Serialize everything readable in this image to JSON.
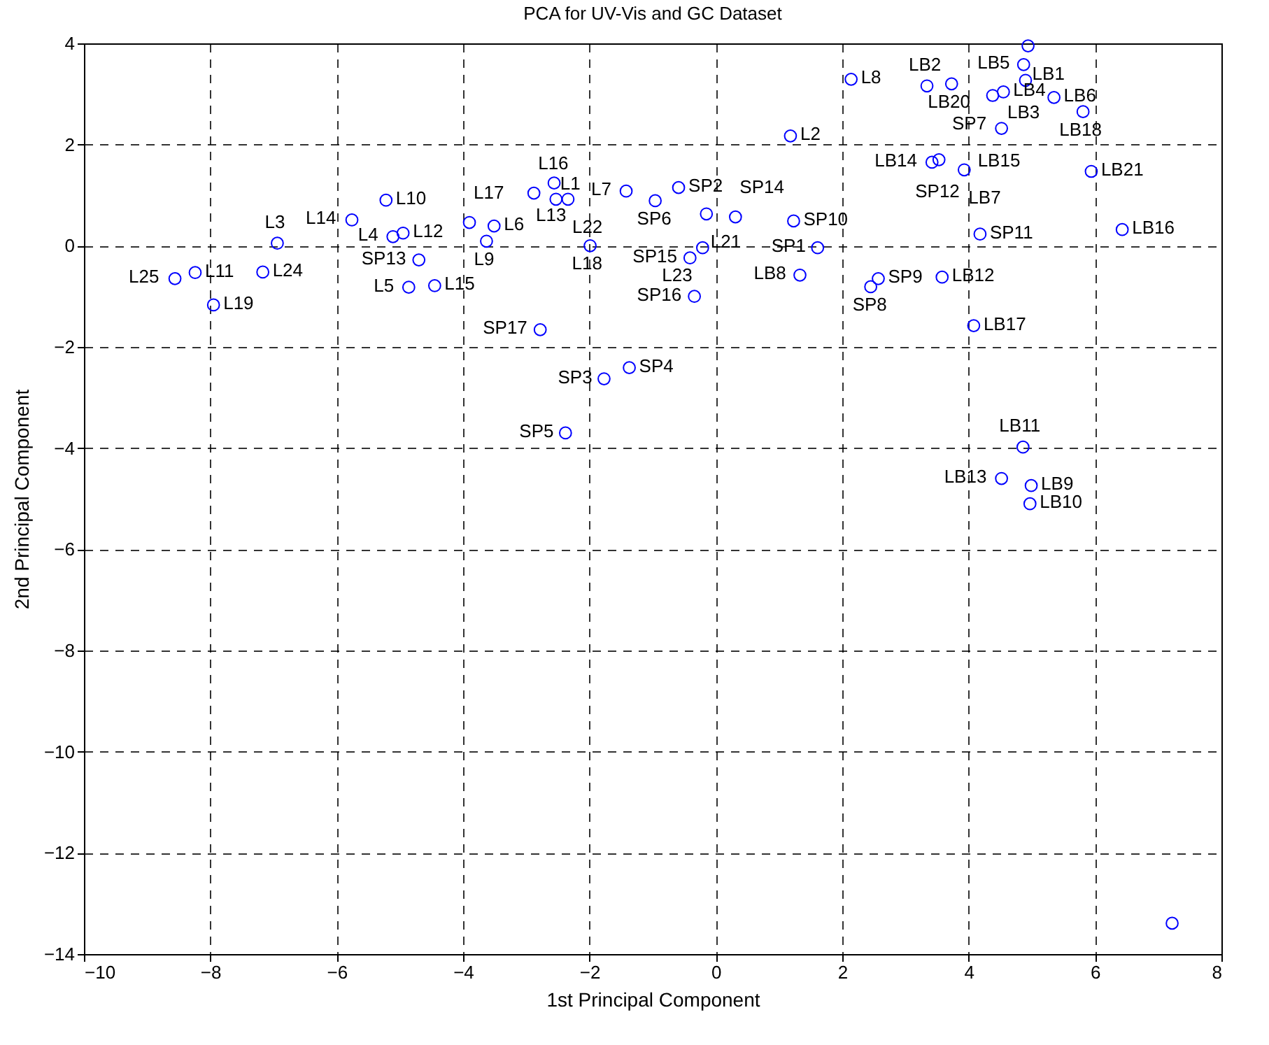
{
  "chart_data": {
    "type": "scatter",
    "title": "PCA for UV-Vis and GC Dataset",
    "xlabel": "1st Principal Component",
    "ylabel": "2nd Principal Component",
    "xlim": [
      -10,
      8
    ],
    "ylim": [
      -14,
      4
    ],
    "xticks": [
      -10,
      -8,
      -6,
      -4,
      -2,
      0,
      2,
      4,
      6,
      8
    ],
    "yticks": [
      -14,
      -12,
      -10,
      -8,
      -6,
      -4,
      -2,
      0,
      2,
      4
    ],
    "grid": true,
    "marker": "circle",
    "series": [
      {
        "color": "#0000ff",
        "x": [
          -8.56,
          -8.24,
          -7.95,
          -7.17,
          -6.94,
          -5.76,
          -5.22,
          -5.11,
          -4.95,
          -4.7,
          -4.86,
          -4.45,
          -3.9,
          -3.51,
          -3.63,
          -2.88,
          -2.56,
          -2.53,
          -2.34,
          -1.99,
          -2.78,
          -1.77,
          -1.37,
          -2.38,
          -1.42,
          -0.96,
          -0.59,
          -0.15,
          0.31,
          1.23,
          1.61,
          1.33,
          -0.41,
          -0.21,
          -0.34,
          2.45,
          2.57,
          1.18,
          2.14,
          3.34,
          3.73,
          4.94,
          4.87,
          4.9,
          4.38,
          4.55,
          5.35,
          5.81,
          4.52,
          3.42,
          3.53,
          3.93,
          5.94,
          4.18,
          6.43,
          3.58,
          4.08,
          4.86,
          4.52,
          4.99,
          4.97,
          7.22
        ],
        "values": [
          -0.65,
          -0.53,
          -1.17,
          -0.52,
          0.05,
          0.51,
          0.9,
          0.18,
          0.25,
          -0.28,
          -0.82,
          -0.79,
          0.46,
          0.39,
          0.09,
          1.04,
          1.24,
          0.92,
          0.92,
          0.0,
          -1.66,
          -2.63,
          -2.41,
          -3.7,
          1.08,
          0.89,
          1.15,
          0.63,
          0.57,
          0.49,
          -0.04,
          -0.58,
          -0.24,
          -0.04,
          -1.0,
          -0.81,
          -0.65,
          2.17,
          3.29,
          3.16,
          3.2,
          3.95,
          3.58,
          3.27,
          2.97,
          3.04,
          2.93,
          2.65,
          2.32,
          1.65,
          1.7,
          1.5,
          1.47,
          0.23,
          0.32,
          -0.62,
          -1.58,
          -3.98,
          -4.6,
          -4.74,
          -5.1,
          -13.39
        ],
        "value_labels": [
          "L25",
          "L11",
          "L19",
          "L24",
          "L3",
          "L14",
          "L10",
          "L4",
          "L12",
          "SP13",
          "L5",
          "L15",
          "L17",
          "L6",
          "L9",
          "L16",
          "L13",
          "L1",
          "L22",
          "L18",
          "SP17",
          "SP3",
          "SP4",
          "SP5",
          "L7",
          "SP6",
          "SP2",
          "L21",
          "SP14",
          "SP10",
          "SP1",
          "LB8",
          "SP15",
          "L23",
          "SP16",
          "SP8",
          "SP9",
          "L2",
          "L8",
          "LB2",
          "LB20",
          "LB1",
          "LB5",
          "LB3",
          "SP7",
          "LB4",
          "LB6",
          "LB18",
          "LB15",
          "LB14",
          "SP12",
          "LB7",
          "LB21",
          "SP11",
          "LB16",
          "LB12",
          "LB17",
          "LB11",
          "LB13",
          "LB9",
          "LB10",
          null
        ]
      }
    ]
  }
}
